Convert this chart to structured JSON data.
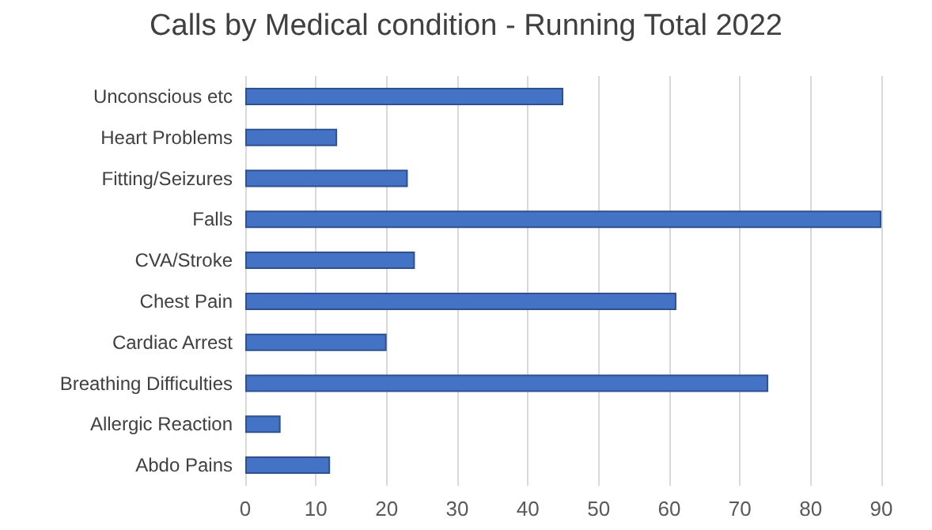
{
  "chart_data": {
    "type": "bar",
    "orientation": "horizontal",
    "title": "Calls by Medical condition - Running Total 2022",
    "categories": [
      "Unconscious etc",
      "Heart Problems",
      "Fitting/Seizures",
      "Falls",
      "CVA/Stroke",
      "Chest Pain",
      "Cardiac Arrest",
      "Breathing Difficulties",
      "Allergic Reaction",
      "Abdo Pains"
    ],
    "values": [
      45,
      13,
      23,
      90,
      24,
      61,
      20,
      74,
      5,
      12
    ],
    "color": "#4472c4",
    "xlim": [
      0,
      90
    ],
    "xticks": [
      0,
      10,
      20,
      30,
      40,
      50,
      60,
      70,
      80,
      90
    ],
    "grid": "x"
  }
}
